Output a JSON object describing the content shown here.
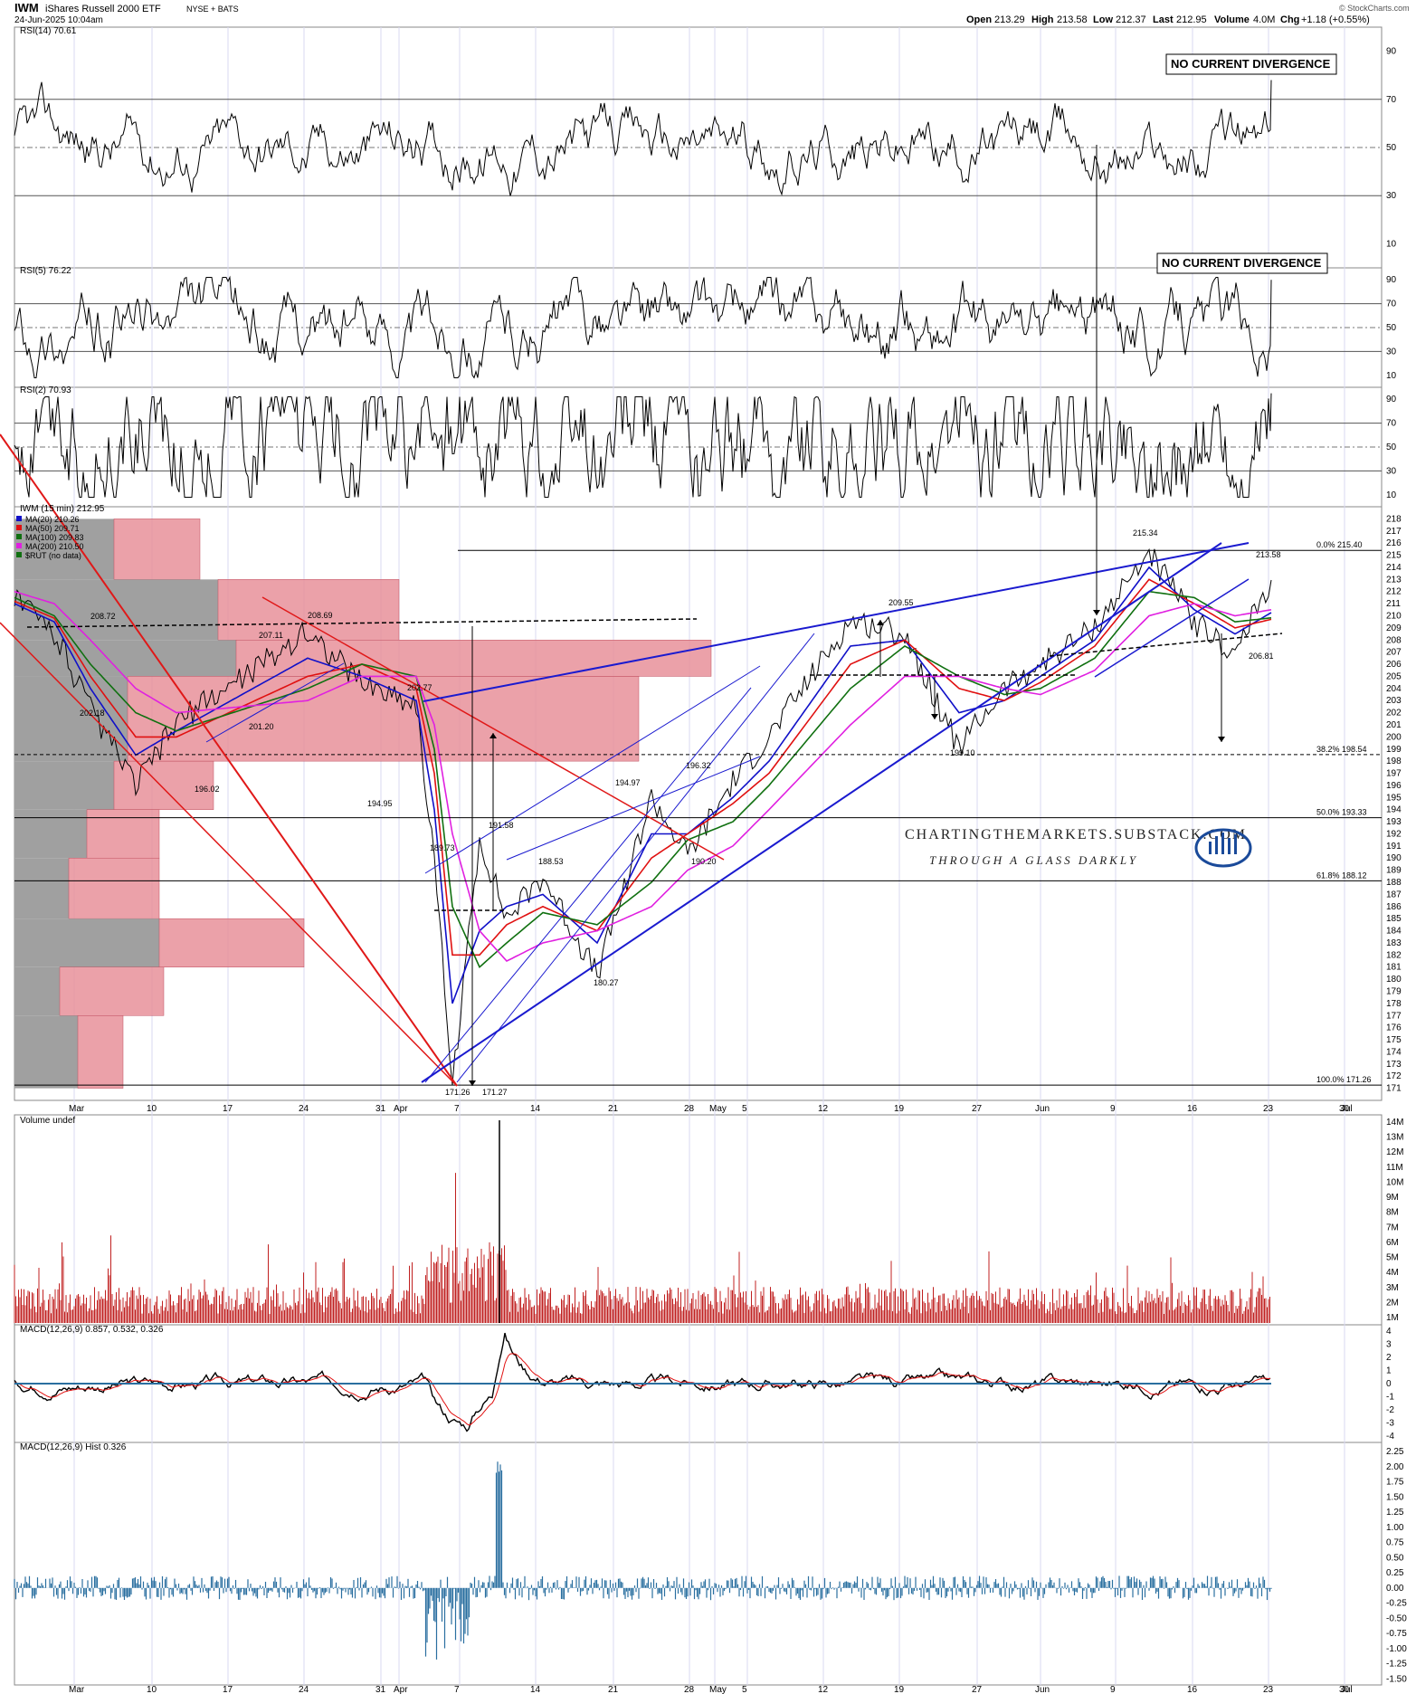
{
  "header": {
    "symbol": "IWM",
    "name": "iShares Russell 2000 ETF",
    "exchange": "NYSE + BATS",
    "datetime": "24-Jun-2025 10:04am",
    "open_label": "Open",
    "open": "213.29",
    "high_label": "High",
    "high": "213.58",
    "low_label": "Low",
    "low": "212.37",
    "last_label": "Last",
    "last": "212.95",
    "volume_label": "Volume",
    "volume": "4.0M",
    "chg_label": "Chg",
    "chg": "+1.18 (+0.55%)",
    "source": "© StockCharts.com"
  },
  "colors": {
    "price": "#000000",
    "ma20": "#1010c8",
    "ma50": "#e01010",
    "ma100": "#107010",
    "ma200": "#e020e0",
    "trend_blue": "#1a1acf",
    "trend_red": "#e01818",
    "vp_red": "#e8909a",
    "vp_gray": "#a0a0a0",
    "rsi_fill_ob": "#3a7a3a",
    "rsi_fill_os": "#8a3a3a",
    "macd_hist": "#2a6fa0",
    "volume": "#c02020"
  },
  "panels": {
    "rsi14": {
      "title": "RSI(14) 70.61",
      "ticks": [
        "90",
        "70",
        "50",
        "30",
        "10"
      ],
      "note": "NO CURRENT DIVERGENCE"
    },
    "rsi5": {
      "title": "RSI(5) 76.22",
      "ticks": [
        "90",
        "70",
        "50",
        "30",
        "10"
      ],
      "note": "NO CURRENT DIVERGENCE"
    },
    "rsi2": {
      "title": "RSI(2) 70.93",
      "ticks": [
        "90",
        "70",
        "50",
        "30",
        "10"
      ]
    },
    "price": {
      "title": "IWM (15 min) 212.95",
      "legend": [
        {
          "text": "MA(20) 210.26",
          "color": "#1010c8"
        },
        {
          "text": "MA(50) 209.71",
          "color": "#e01010"
        },
        {
          "text": "MA(100) 209.83",
          "color": "#107010"
        },
        {
          "text": "MA(200) 210.50",
          "color": "#e020e0"
        },
        {
          "text": "$RUT (no data)",
          "color": "#107010"
        }
      ],
      "fib": [
        {
          "text": "0.0% 215.40",
          "price": 215.4
        },
        {
          "text": "38.2% 198.54",
          "price": 198.54
        },
        {
          "text": "50.0% 193.33",
          "price": 193.33
        },
        {
          "text": "61.8% 188.12",
          "price": 188.12
        },
        {
          "text": "100.0% 171.26",
          "price": 171.26
        }
      ],
      "point_labels": [
        {
          "text": "208.72",
          "price": 208.72
        },
        {
          "text": "202.18",
          "price": 202.18
        },
        {
          "text": "196.02",
          "price": 196.02
        },
        {
          "text": "207.11",
          "price": 207.11
        },
        {
          "text": "201.20",
          "price": 201.2
        },
        {
          "text": "208.69",
          "price": 208.69
        },
        {
          "text": "202.77",
          "price": 202.77
        },
        {
          "text": "194.95",
          "price": 194.95
        },
        {
          "text": "189.73",
          "price": 189.73
        },
        {
          "text": "191.58",
          "price": 191.58
        },
        {
          "text": "188.53",
          "price": 188.53
        },
        {
          "text": "171.26",
          "price": 171.26
        },
        {
          "text": "171.27",
          "price": 171.27
        },
        {
          "text": "180.27",
          "price": 180.27
        },
        {
          "text": "194.97",
          "price": 194.97
        },
        {
          "text": "196.32",
          "price": 196.32
        },
        {
          "text": "190.20",
          "price": 190.2
        },
        {
          "text": "209.55",
          "price": 209.55
        },
        {
          "text": "199.10",
          "price": 199.1
        },
        {
          "text": "215.34",
          "price": 215.34
        },
        {
          "text": "213.58",
          "price": 213.58
        },
        {
          "text": "206.81",
          "price": 206.81
        }
      ],
      "watermark": "CHARTINGTHEMARKETS.SUBSTACK.COM",
      "watermark_sub": "THROUGH A GLASS DARKLY",
      "ticks": [
        "218",
        "217",
        "216",
        "215",
        "214",
        "213",
        "212",
        "211",
        "210",
        "209",
        "208",
        "207",
        "206",
        "205",
        "204",
        "203",
        "202",
        "201",
        "200",
        "199",
        "198",
        "197",
        "196",
        "195",
        "194",
        "193",
        "192",
        "191",
        "190",
        "189",
        "188",
        "187",
        "186",
        "185",
        "184",
        "183",
        "182",
        "181",
        "180",
        "179",
        "178",
        "177",
        "176",
        "175",
        "174",
        "173",
        "172",
        "171"
      ]
    },
    "volume": {
      "title": "Volume undef",
      "ticks": [
        "14M",
        "13M",
        "12M",
        "11M",
        "10M",
        "9M",
        "8M",
        "7M",
        "6M",
        "5M",
        "4M",
        "3M",
        "2M",
        "1M"
      ]
    },
    "macd": {
      "title": "MACD(12,26,9) 0.857, 0.532, 0.326",
      "ticks": [
        "4",
        "3",
        "2",
        "1",
        "0",
        "-1",
        "-2",
        "-3",
        "-4"
      ]
    },
    "hist": {
      "title": "MACD(12,26,9) Hist 0.326",
      "ticks": [
        "2.25",
        "2.00",
        "1.75",
        "1.50",
        "1.25",
        "1.00",
        "0.75",
        "0.50",
        "0.25",
        "0.00",
        "-0.25",
        "-0.50",
        "-0.75",
        "-1.00",
        "-1.25",
        "-1.50"
      ]
    }
  },
  "x_axis": [
    "Mar",
    "10",
    "17",
    "24",
    "31",
    "Apr",
    "7",
    "14",
    "21",
    "28",
    "May",
    "5",
    "12",
    "19",
    "27",
    "Jun",
    "9",
    "16",
    "23",
    "30",
    "Jul"
  ],
  "chart_data": {
    "type": "line",
    "title": "IWM (15 min) 212.95",
    "xlabel": "",
    "ylabel": "",
    "ylim": [
      171,
      218
    ],
    "x": [
      "Mar 1",
      "Mar 5",
      "Mar 10",
      "Mar 13",
      "Mar 17",
      "Mar 24",
      "Mar 28",
      "Apr 2",
      "Apr 4",
      "Apr 7",
      "Apr 9",
      "Apr 10",
      "Apr 14",
      "Apr 21",
      "Apr 24",
      "Apr 28",
      "May 2",
      "May 5",
      "May 12",
      "May 16",
      "May 21",
      "May 27",
      "Jun 2",
      "Jun 5",
      "Jun 11",
      "Jun 16",
      "Jun 20",
      "Jun 24"
    ],
    "series": [
      {
        "name": "IWM",
        "values": [
          211.5,
          208.7,
          202.2,
          196.0,
          201.2,
          208.7,
          204.5,
          202.8,
          189.7,
          171.3,
          191.6,
          185.0,
          188.5,
          180.3,
          195.0,
          190.2,
          196.3,
          200.0,
          209.6,
          208.5,
          199.1,
          204.0,
          206.0,
          209.0,
          215.3,
          209.5,
          206.8,
          212.95
        ]
      },
      {
        "name": "MA(20) 210.26",
        "values": [
          211.0,
          209.5,
          204.0,
          198.5,
          200.5,
          206.5,
          205.0,
          203.0,
          194.0,
          178.0,
          184.0,
          186.0,
          187.0,
          183.0,
          192.0,
          192.0,
          195.0,
          198.0,
          207.5,
          208.0,
          202.0,
          203.0,
          205.0,
          208.0,
          214.0,
          210.5,
          208.5,
          210.26
        ]
      },
      {
        "name": "MA(50) 209.71",
        "values": [
          211.2,
          209.8,
          205.0,
          200.0,
          200.0,
          205.0,
          206.0,
          204.0,
          197.0,
          182.0,
          182.0,
          184.5,
          186.0,
          184.0,
          190.0,
          192.0,
          194.5,
          197.0,
          206.0,
          208.0,
          204.0,
          203.0,
          204.5,
          207.5,
          213.0,
          211.0,
          209.0,
          209.71
        ]
      },
      {
        "name": "MA(100) 209.83",
        "values": [
          211.5,
          210.0,
          206.0,
          202.0,
          200.5,
          204.0,
          206.0,
          205.0,
          199.0,
          186.0,
          181.0,
          183.0,
          185.5,
          184.5,
          188.0,
          191.5,
          193.0,
          196.0,
          204.0,
          207.5,
          205.0,
          203.5,
          204.0,
          206.5,
          212.0,
          211.5,
          209.5,
          209.83
        ]
      },
      {
        "name": "MA(200) 210.50",
        "values": [
          212.0,
          211.0,
          208.0,
          204.0,
          202.0,
          203.0,
          205.0,
          205.0,
          201.0,
          192.0,
          184.0,
          181.5,
          183.0,
          184.0,
          186.0,
          189.0,
          191.0,
          194.0,
          201.0,
          205.0,
          205.0,
          204.0,
          203.5,
          205.5,
          210.0,
          211.0,
          210.0,
          210.5
        ]
      }
    ]
  }
}
